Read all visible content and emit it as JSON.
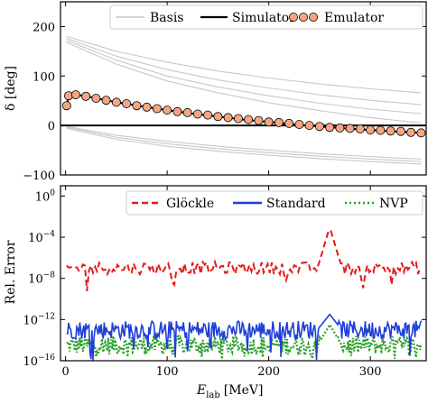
{
  "chart_data": [
    {
      "type": "line",
      "ylabel": "δ [deg]",
      "xlim": [
        -5,
        355
      ],
      "ylim": [
        -100,
        250
      ],
      "xticks": [
        0,
        100,
        200,
        300
      ],
      "yticks": [
        -100,
        0,
        100,
        200
      ],
      "ytick_labels": [
        "−100",
        "0",
        "100",
        "200"
      ],
      "legend_position": "top-right",
      "colors": {
        "basis": "#c8c8c8",
        "simulator": "#000000",
        "emulator_fill": "#f4a582",
        "emulator_edge": "#000000"
      },
      "legend": [
        {
          "label": "Basis",
          "style": "light-gray-line"
        },
        {
          "label": "Simulator",
          "style": "black-line"
        },
        {
          "label": "Emulator",
          "style": "orange-circles"
        }
      ],
      "basis_curves": [
        {
          "x": [
            1,
            50,
            100,
            150,
            200,
            250,
            300,
            350
          ],
          "values": [
            180,
            150,
            128,
            110,
            96,
            84,
            74,
            66
          ]
        },
        {
          "x": [
            1,
            50,
            100,
            150,
            200,
            250,
            300,
            350
          ],
          "values": [
            176,
            140,
            113,
            92,
            76,
            62,
            51,
            42
          ]
        },
        {
          "x": [
            1,
            50,
            100,
            150,
            200,
            250,
            300,
            350
          ],
          "values": [
            172,
            132,
            100,
            78,
            60,
            45,
            33,
            24
          ]
        },
        {
          "x": [
            1,
            50,
            100,
            150,
            200,
            250,
            300,
            350
          ],
          "values": [
            168,
            124,
            90,
            66,
            46,
            30,
            16,
            5
          ]
        },
        {
          "x": [
            1,
            50,
            100,
            150,
            200,
            250,
            300,
            350
          ],
          "values": [
            -2,
            -20,
            -32,
            -42,
            -50,
            -57,
            -63,
            -68
          ]
        },
        {
          "x": [
            1,
            50,
            100,
            150,
            200,
            250,
            300,
            350
          ],
          "values": [
            -4,
            -24,
            -37,
            -47,
            -55,
            -62,
            -68,
            -73
          ]
        },
        {
          "x": [
            1,
            50,
            100,
            150,
            200,
            250,
            300,
            350
          ],
          "values": [
            -6,
            -28,
            -42,
            -52,
            -60,
            -67,
            -73,
            -78
          ]
        }
      ],
      "series": [
        {
          "name": "Simulator",
          "x": [
            1,
            2,
            3,
            5,
            8,
            12,
            20,
            30,
            40,
            50,
            60,
            80,
            100,
            125,
            150,
            175,
            200,
            225,
            250,
            275,
            300,
            325,
            350
          ],
          "values": [
            38,
            50,
            58,
            62,
            63,
            62,
            59,
            55,
            51,
            47,
            44,
            37,
            31,
            24,
            18,
            12,
            7,
            2,
            -2,
            -6,
            -9,
            -12,
            -15
          ]
        },
        {
          "name": "Emulator",
          "x": [
            1,
            3,
            10,
            20,
            30,
            40,
            50,
            60,
            70,
            80,
            90,
            100,
            110,
            120,
            130,
            140,
            150,
            160,
            170,
            180,
            190,
            200,
            210,
            220,
            230,
            240,
            250,
            260,
            270,
            280,
            290,
            300,
            310,
            320,
            330,
            340,
            350
          ],
          "values": [
            40,
            60,
            62,
            59,
            55,
            51,
            47,
            44,
            40,
            37,
            34,
            31,
            28,
            26,
            23,
            21,
            18,
            16,
            14,
            12,
            10,
            7,
            6,
            4,
            2,
            0,
            -2,
            -4,
            -5,
            -6,
            -7,
            -9,
            -10,
            -11,
            -12,
            -14,
            -15
          ]
        }
      ]
    },
    {
      "type": "line",
      "xlabel": "E",
      "xlabel_sub": "lab",
      "xlabel_unit": "[MeV]",
      "ylabel": "Rel. Error",
      "yscale": "log",
      "xlim": [
        -5,
        355
      ],
      "ylim_exp": [
        -16,
        1
      ],
      "xticks": [
        0,
        100,
        200,
        300
      ],
      "ytick_exponents": [
        -16,
        -12,
        -8,
        -4,
        0
      ],
      "legend_position": "top",
      "colors": {
        "glockle": "#e41a1c",
        "standard": "#1f3fd8",
        "nvp": "#2ca02c"
      },
      "legend": [
        {
          "label": "Glöckle",
          "style": "red-dashed"
        },
        {
          "label": "Standard",
          "style": "blue-solid"
        },
        {
          "label": "NVP",
          "style": "green-dotted"
        }
      ],
      "series": [
        {
          "name": "Glöckle",
          "x_range": [
            1,
            350
          ],
          "typical_log10": -7,
          "min_log10": -9.5,
          "peak": {
            "x": 260,
            "log10": -3
          }
        },
        {
          "name": "Standard",
          "x_range": [
            1,
            350
          ],
          "typical_log10": -13,
          "min_log10": -16,
          "peak": {
            "x": 260,
            "log10": -11.5
          }
        },
        {
          "name": "NVP",
          "x_range": [
            1,
            350
          ],
          "typical_log10": -14.5,
          "min_log10": -16,
          "peak": {
            "x": 260,
            "log10": -12.5
          }
        }
      ]
    }
  ]
}
